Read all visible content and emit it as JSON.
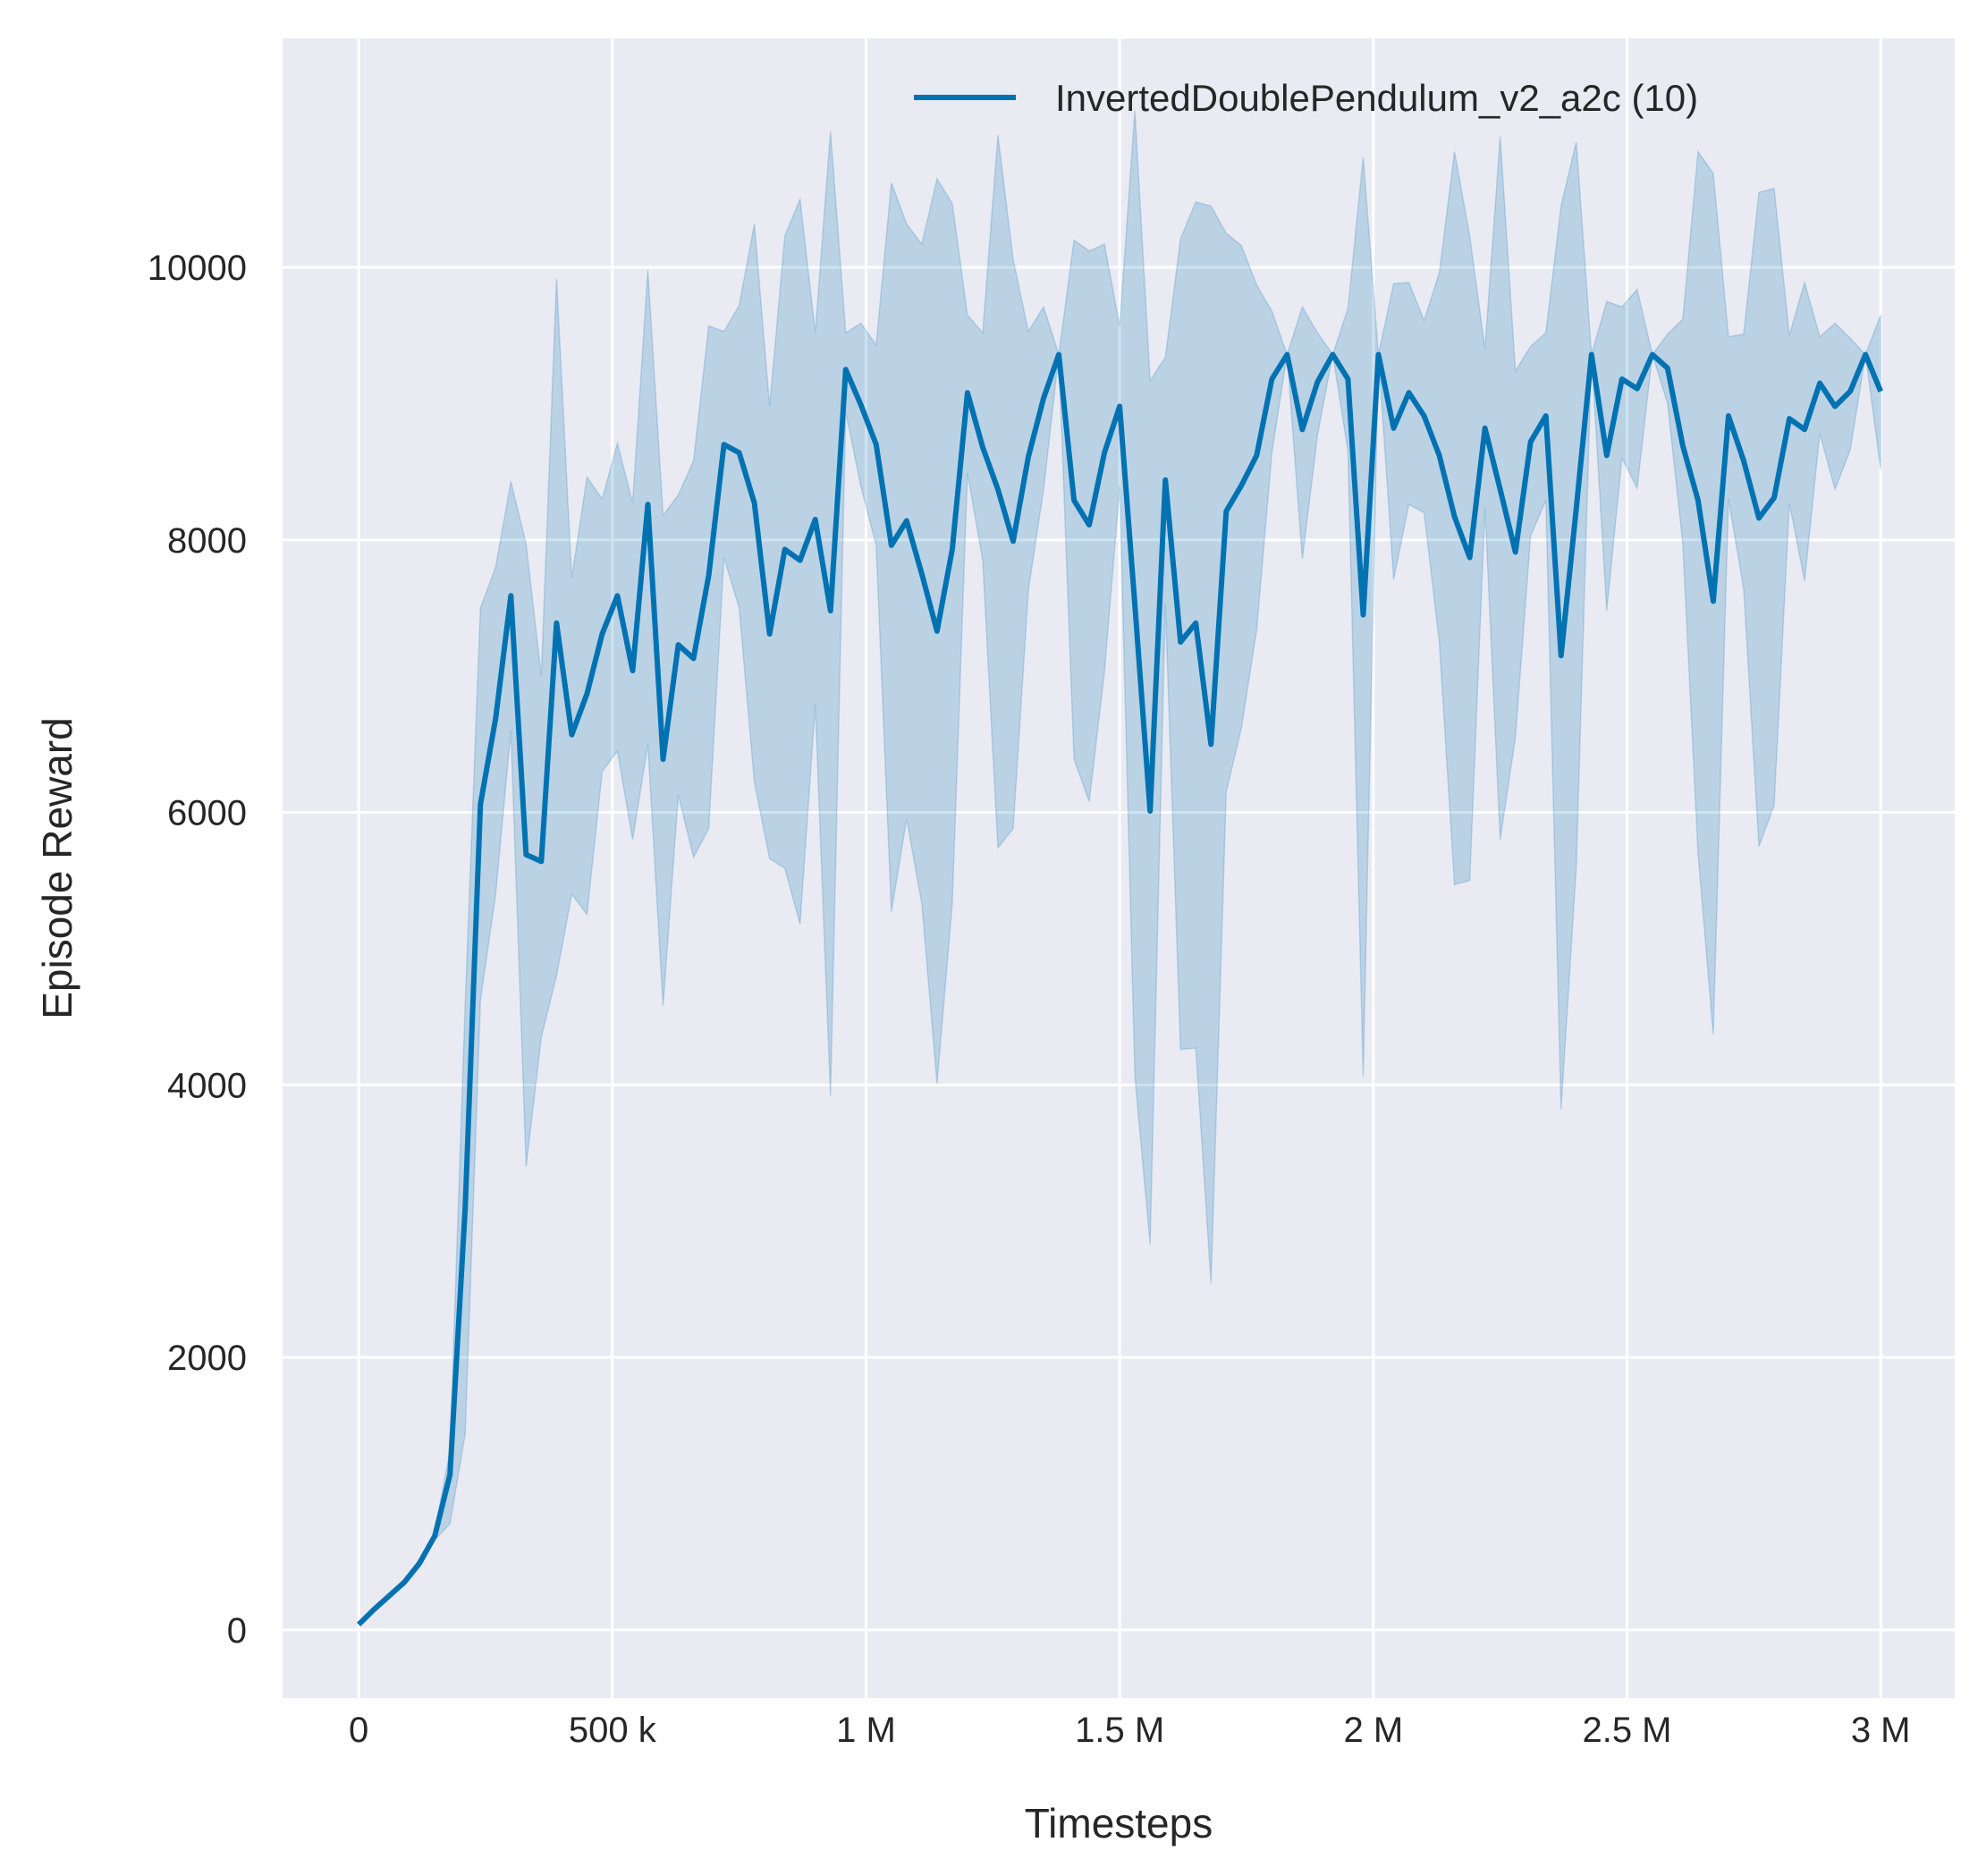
{
  "chart_data": {
    "type": "line",
    "title": "",
    "xlabel": "Timesteps",
    "ylabel": "Episode Reward",
    "xlim": [
      -150000,
      3146000
    ],
    "ylim": [
      -500,
      11680
    ],
    "grid": true,
    "legend_position": "top-right",
    "background_color": "#EAEAF2",
    "line_color": "#0072B2",
    "x_ticks": [
      0,
      500000,
      1000000,
      1500000,
      2000000,
      2500000,
      3000000
    ],
    "x_tick_labels": [
      "0",
      "500 k",
      "1 M",
      "1.5 M",
      "2 M",
      "2.5 M",
      "3 M"
    ],
    "y_ticks": [
      0,
      2000,
      4000,
      6000,
      8000,
      10000
    ],
    "y_tick_labels": [
      "0",
      "2000",
      "4000",
      "6000",
      "8000",
      "10000"
    ],
    "series": [
      {
        "name": "InvertedDoublePendulum_v2_a2c (10)",
        "x_step": 30000,
        "mean": [
          40,
          150,
          250,
          350,
          490,
          690,
          1140,
          3100,
          6060,
          6690,
          7590,
          5690,
          5640,
          7390,
          6570,
          6870,
          7310,
          7590,
          7040,
          8260,
          6390,
          7230,
          7130,
          7740,
          8700,
          8640,
          8270,
          7310,
          7930,
          7850,
          8150,
          7480,
          9250,
          8990,
          8700,
          7960,
          8140,
          7750,
          7330,
          7930,
          9080,
          8680,
          8370,
          7990,
          8610,
          9040,
          9360,
          8290,
          8110,
          8640,
          8980,
          7520,
          6010,
          8440,
          7250,
          7390,
          6500,
          8210,
          8400,
          8620,
          9180,
          9360,
          8810,
          9160,
          9360,
          9180,
          7450,
          9360,
          8820,
          9080,
          8910,
          8620,
          8170,
          7870,
          8820,
          8370,
          7910,
          8720,
          8910,
          7150,
          8230,
          9360,
          8620,
          9180,
          9110,
          9360,
          9260,
          8690,
          8290,
          7550,
          8910,
          8580,
          8160,
          8310,
          8890,
          8810,
          9150,
          8980,
          9090,
          9360,
          9090
        ],
        "upper": [
          40,
          160,
          260,
          370,
          520,
          720,
          1320,
          4600,
          7500,
          7800,
          8430,
          7970,
          7000,
          9920,
          7720,
          8460,
          8300,
          8710,
          8270,
          9980,
          8180,
          8330,
          8580,
          9570,
          9530,
          9720,
          10320,
          8980,
          10230,
          10500,
          9520,
          11000,
          9520,
          9590,
          9430,
          10620,
          10320,
          10170,
          10650,
          10470,
          9650,
          9520,
          10970,
          10060,
          9530,
          9710,
          9360,
          10200,
          10120,
          10170,
          9570,
          11150,
          9170,
          9340,
          10210,
          10480,
          10450,
          10250,
          10160,
          9870,
          9680,
          9360,
          9710,
          9520,
          9360,
          9700,
          10810,
          9360,
          9880,
          9890,
          9610,
          9960,
          10850,
          10230,
          9400,
          10960,
          9240,
          9420,
          9520,
          10450,
          10920,
          9360,
          9750,
          9710,
          9840,
          9360,
          9510,
          9620,
          10850,
          10690,
          9490,
          9510,
          10550,
          10580,
          9500,
          9890,
          9490,
          9590,
          9480,
          9360,
          9650
        ],
        "lower": [
          40,
          140,
          240,
          330,
          460,
          660,
          780,
          1440,
          4620,
          5400,
          6600,
          3400,
          4350,
          4800,
          5400,
          5250,
          6300,
          6450,
          5800,
          6500,
          4580,
          6130,
          5670,
          5880,
          7870,
          7500,
          6220,
          5660,
          5590,
          5180,
          6790,
          3920,
          8940,
          8390,
          7960,
          5270,
          5950,
          5330,
          4010,
          5330,
          8490,
          7850,
          5740,
          5880,
          7630,
          8370,
          9360,
          6390,
          6080,
          7030,
          8390,
          4060,
          2830,
          7530,
          4260,
          4270,
          2540,
          6150,
          6620,
          7340,
          8640,
          9360,
          7860,
          8770,
          9360,
          8650,
          4060,
          9360,
          7710,
          8260,
          8200,
          7250,
          5470,
          5500,
          8240,
          5800,
          6550,
          8030,
          8290,
          3820,
          5600,
          9360,
          7480,
          8600,
          8380,
          9360,
          9000,
          7970,
          5700,
          4370,
          8300,
          7640,
          5750,
          6050,
          8270,
          7700,
          8780,
          8370,
          8660,
          9360,
          8520
        ]
      }
    ]
  }
}
